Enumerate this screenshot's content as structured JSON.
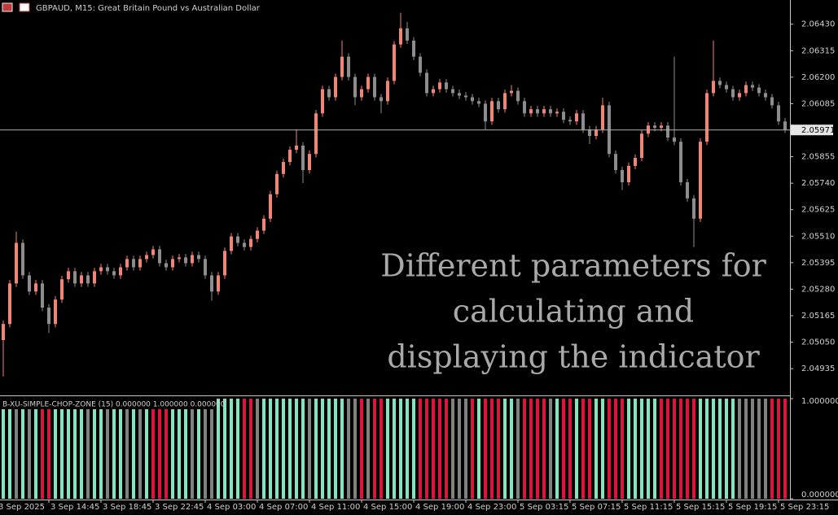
{
  "chart_data": [
    {
      "type": "candlestick",
      "title": "GBPAUD, M15:  Great Britain Pound vs Australian Dollar",
      "annotation": [
        "Different parameters for",
        "calculating and",
        "displaying the indicator"
      ],
      "up_color": "#ef8577",
      "down_color": "#8d8d8d",
      "categories": [
        "3 Sep 2025",
        null,
        null,
        null,
        null,
        null,
        null,
        null,
        "3 Sep 14:45",
        null,
        null,
        null,
        null,
        null,
        null,
        null,
        "3 Sep 18:45",
        null,
        null,
        null,
        null,
        null,
        null,
        null,
        "3 Sep 22:45",
        null,
        null,
        null,
        null,
        null,
        null,
        null,
        "4 Sep 03:00",
        null,
        null,
        null,
        null,
        null,
        null,
        null,
        "4 Sep 07:00",
        null,
        null,
        null,
        null,
        null,
        null,
        null,
        "4 Sep 11:00",
        null,
        null,
        null,
        null,
        null,
        null,
        null,
        "4 Sep 15:00",
        null,
        null,
        null,
        null,
        null,
        null,
        null,
        "4 Sep 19:00",
        null,
        null,
        null,
        null,
        null,
        null,
        null,
        "4 Sep 23:00",
        null,
        null,
        null,
        null,
        null,
        null,
        null,
        "5 Sep 03:15",
        null,
        null,
        null,
        null,
        null,
        null,
        null,
        "5 Sep 07:15",
        null,
        null,
        null,
        null,
        null,
        null,
        null,
        "5 Sep 11:15",
        null,
        null,
        null,
        null,
        null,
        null,
        null,
        "5 Sep 15:15",
        null,
        null,
        null,
        null,
        null,
        null,
        null,
        "5 Sep 19:15",
        null,
        null,
        null,
        null,
        null,
        null,
        null,
        "5 Sep 23:15"
      ],
      "open": [
        2.05059,
        2.05129,
        2.05305,
        2.05481,
        2.0534,
        2.0527,
        2.05305,
        2.052,
        2.05129,
        2.05235,
        2.05323,
        2.05358,
        2.05305,
        2.0534,
        2.05305,
        2.05358,
        2.05375,
        2.05358,
        2.0534,
        2.05375,
        2.05411,
        2.05375,
        2.05411,
        2.05428,
        2.05453,
        2.05393,
        2.05375,
        2.05411,
        2.05418,
        2.05393,
        2.05428,
        2.05411,
        2.0534,
        2.0527,
        2.0534,
        2.05446,
        2.05509,
        2.05481,
        2.05463,
        2.05498,
        2.05534,
        2.05586,
        2.05692,
        2.0578,
        2.05832,
        2.05885,
        2.05903,
        2.05797,
        2.05867,
        2.06043,
        2.06148,
        2.06113,
        2.06201,
        2.06289,
        2.06201,
        2.06113,
        2.06148,
        2.06201,
        2.06113,
        2.06096,
        2.06184,
        2.06342,
        2.06412,
        2.06359,
        2.06289,
        2.06219,
        2.06131,
        2.06148,
        2.06177,
        2.06148,
        2.06131,
        2.0612,
        2.06113,
        2.06096,
        2.06085,
        2.06008,
        2.06096,
        2.06061,
        2.06131,
        2.06141,
        2.06096,
        2.06043,
        2.06061,
        2.06043,
        2.06061,
        2.06043,
        2.0605,
        2.06015,
        2.06008,
        2.06043,
        2.05973,
        2.05945,
        2.05973,
        2.06078,
        2.05867,
        2.05797,
        2.05744,
        2.05815,
        2.0585,
        2.05955,
        2.0599,
        2.0598,
        2.0599,
        2.05938,
        2.0592,
        2.05744,
        2.05674,
        2.05586,
        2.0592,
        2.06131,
        2.06184,
        2.06166,
        2.06148,
        2.06113,
        2.06131,
        2.06166,
        2.06155,
        2.06131,
        2.06113,
        2.06078,
        2.06008
      ],
      "high": [
        2.05144,
        2.0532,
        2.0553,
        2.05496,
        2.05355,
        2.0532,
        2.0532,
        2.05215,
        2.0525,
        2.05338,
        2.05373,
        2.05373,
        2.05355,
        2.05355,
        2.05373,
        2.0539,
        2.0539,
        2.05373,
        2.0539,
        2.05426,
        2.05426,
        2.05426,
        2.05443,
        2.05468,
        2.05468,
        2.05408,
        2.05426,
        2.05433,
        2.05433,
        2.05443,
        2.05443,
        2.05426,
        2.05355,
        2.05355,
        2.05461,
        2.05524,
        2.05524,
        2.05496,
        2.05513,
        2.05549,
        2.05601,
        2.05707,
        2.05795,
        2.05847,
        2.059,
        2.05973,
        2.05918,
        2.05882,
        2.06058,
        2.06163,
        2.06163,
        2.06216,
        2.06359,
        2.06304,
        2.06216,
        2.06163,
        2.06216,
        2.06216,
        2.06128,
        2.06199,
        2.06357,
        2.0648,
        2.0644,
        2.06374,
        2.06304,
        2.06234,
        2.06163,
        2.06192,
        2.06192,
        2.06163,
        2.06146,
        2.06135,
        2.06128,
        2.06111,
        2.061,
        2.06111,
        2.06111,
        2.06146,
        2.06166,
        2.06156,
        2.06111,
        2.06076,
        2.06076,
        2.06076,
        2.06076,
        2.06065,
        2.06065,
        2.0603,
        2.06058,
        2.06058,
        2.05988,
        2.05988,
        2.06111,
        2.06093,
        2.05882,
        2.05812,
        2.0583,
        2.05865,
        2.0597,
        2.06005,
        2.06005,
        2.06005,
        2.06005,
        2.06289,
        2.05935,
        2.05759,
        2.05689,
        2.05935,
        2.06146,
        2.06359,
        2.06199,
        2.06181,
        2.06163,
        2.06146,
        2.06181,
        2.06181,
        2.0617,
        2.06146,
        2.06128,
        2.06093,
        2.06023
      ],
      "low": [
        2.04901,
        2.05114,
        2.0529,
        2.05325,
        2.05255,
        2.05255,
        2.05185,
        2.0509,
        2.05114,
        2.0522,
        2.05308,
        2.0529,
        2.0529,
        2.0529,
        2.0529,
        2.05343,
        2.05343,
        2.05325,
        2.05325,
        2.0536,
        2.0536,
        2.0536,
        2.05396,
        2.05413,
        2.05378,
        2.0536,
        2.0536,
        2.05396,
        2.05378,
        2.05378,
        2.05396,
        2.05325,
        2.0523,
        2.05255,
        2.05325,
        2.05431,
        2.05466,
        2.05448,
        2.05448,
        2.05483,
        2.05519,
        2.05571,
        2.05677,
        2.05765,
        2.05817,
        2.0587,
        2.0574,
        2.05782,
        2.05852,
        2.06028,
        2.06098,
        2.06098,
        2.06186,
        2.06186,
        2.06078,
        2.06098,
        2.06133,
        2.06098,
        2.06043,
        2.06081,
        2.06169,
        2.06327,
        2.06344,
        2.06274,
        2.06204,
        2.06116,
        2.06116,
        2.06133,
        2.06133,
        2.06116,
        2.06105,
        2.06098,
        2.06081,
        2.0607,
        2.05973,
        2.05993,
        2.06046,
        2.06046,
        2.06116,
        2.06081,
        2.06028,
        2.06028,
        2.06028,
        2.06028,
        2.06028,
        2.06028,
        2.06,
        2.05993,
        2.05993,
        2.05958,
        2.0591,
        2.0593,
        2.05958,
        2.05852,
        2.05782,
        2.0571,
        2.05729,
        2.058,
        2.05835,
        2.0594,
        2.05965,
        2.05965,
        2.05923,
        2.05905,
        2.05729,
        2.05659,
        2.05463,
        2.05571,
        2.05905,
        2.06116,
        2.06151,
        2.06133,
        2.06098,
        2.06098,
        2.06116,
        2.0614,
        2.06116,
        2.06098,
        2.06063,
        2.05993,
        2.05958
      ],
      "close": [
        2.05129,
        2.05305,
        2.05481,
        2.0534,
        2.0527,
        2.05305,
        2.052,
        2.05129,
        2.05235,
        2.05323,
        2.05358,
        2.05305,
        2.0534,
        2.05305,
        2.05358,
        2.05375,
        2.05358,
        2.0534,
        2.05375,
        2.05411,
        2.05375,
        2.05411,
        2.05428,
        2.05453,
        2.05393,
        2.05375,
        2.05411,
        2.05418,
        2.05393,
        2.05428,
        2.05411,
        2.0534,
        2.0527,
        2.0534,
        2.05446,
        2.05509,
        2.05481,
        2.05463,
        2.05498,
        2.05534,
        2.05586,
        2.05692,
        2.0578,
        2.05832,
        2.05885,
        2.05903,
        2.05797,
        2.05867,
        2.06043,
        2.06148,
        2.06113,
        2.06201,
        2.06289,
        2.06201,
        2.06113,
        2.06148,
        2.06201,
        2.06113,
        2.06096,
        2.06184,
        2.06342,
        2.06412,
        2.06359,
        2.06289,
        2.06219,
        2.06131,
        2.06148,
        2.06177,
        2.06148,
        2.06131,
        2.0612,
        2.06113,
        2.06096,
        2.06085,
        2.06008,
        2.06096,
        2.06061,
        2.06131,
        2.06141,
        2.06096,
        2.06043,
        2.06061,
        2.06043,
        2.06061,
        2.06043,
        2.0605,
        2.06015,
        2.06008,
        2.06043,
        2.05973,
        2.05945,
        2.05973,
        2.06078,
        2.05867,
        2.05797,
        2.05744,
        2.05815,
        2.0585,
        2.05955,
        2.0599,
        2.0598,
        2.0599,
        2.05938,
        2.0592,
        2.05744,
        2.05674,
        2.05586,
        2.0592,
        2.06131,
        2.06184,
        2.06166,
        2.06148,
        2.06113,
        2.06131,
        2.06166,
        2.06155,
        2.06131,
        2.06113,
        2.06078,
        2.06008,
        2.05973
      ],
      "ylim": [
        2.04819,
        2.06535
      ],
      "yticks": [
        {
          "value": 2.0643,
          "label": "2.06430"
        },
        2.06315,
        {
          "value": 2.062,
          "label": "2.06200"
        },
        2.06085,
        2.05855,
        {
          "value": 2.0574,
          "label": "2.05740"
        },
        2.05625,
        {
          "value": 2.0551,
          "label": "2.05510"
        },
        2.05395,
        {
          "value": 2.0528,
          "label": "2.05280"
        },
        2.05165,
        {
          "value": 2.0505,
          "label": "2.05050"
        },
        2.04935
      ],
      "current_price": 2.05971,
      "current_price_color": "#b4b4b4"
    },
    {
      "type": "bar",
      "title": "B-XU-SIMPLE-CHOP-ZONE (15) 0.000000 1.000000 0.000000",
      "values": [
        1,
        1,
        1,
        1,
        1,
        1,
        1,
        1,
        1,
        1,
        1,
        1,
        1,
        1,
        1,
        1,
        1,
        1,
        1,
        1,
        1,
        1,
        1,
        1,
        1,
        1,
        1,
        1,
        1,
        1,
        1,
        1,
        1,
        1,
        1,
        1,
        1,
        1,
        1,
        1,
        1,
        1,
        1,
        1,
        1,
        1,
        1,
        1,
        1,
        1,
        1,
        1,
        1,
        1,
        1,
        1,
        1,
        1,
        1,
        1,
        1,
        1,
        1,
        1,
        1,
        1,
        1,
        1,
        1,
        1,
        1,
        1,
        1,
        1,
        1,
        1,
        1,
        1,
        1,
        1,
        1,
        1,
        1,
        1,
        1,
        1,
        1,
        1,
        1,
        1,
        1,
        1,
        1,
        1,
        1,
        1,
        1,
        1,
        1,
        1,
        1,
        1,
        1,
        1,
        1,
        1,
        1,
        1,
        1,
        1,
        1,
        1,
        1,
        1,
        1,
        1,
        1,
        1,
        1,
        1,
        1
      ],
      "colors": [
        "#86e3bd",
        "#86e3bd",
        "#808080",
        "#86e3bd",
        "#808080",
        "#86e3bd",
        "#dc143c",
        "#dc143c",
        "#86e3bd",
        "#86e3bd",
        "#86e3bd",
        "#86e3bd",
        "#86e3bd",
        "#808080",
        "#86e3bd",
        "#86e3bd",
        "#808080",
        "#86e3bd",
        "#86e3bd",
        "#808080",
        "#86e3bd",
        "#808080",
        "#86e3bd",
        "#dc143c",
        "#dc143c",
        "#dc143c",
        "#86e3bd",
        "#86e3bd",
        "#86e3bd",
        "#808080",
        "#86e3bd",
        "#808080",
        "#808080",
        "#86e3bd",
        "#86e3bd",
        "#86e3bd",
        "#86e3bd",
        "#dc143c",
        "#dc143c",
        "#808080",
        "#86e3bd",
        "#86e3bd",
        "#86e3bd",
        "#86e3bd",
        "#86e3bd",
        "#86e3bd",
        "#86e3bd",
        "#808080",
        "#86e3bd",
        "#86e3bd",
        "#86e3bd",
        "#86e3bd",
        "#86e3bd",
        "#808080",
        "#808080",
        "#dc143c",
        "#808080",
        "#dc143c",
        "#dc143c",
        "#86e3bd",
        "#86e3bd",
        "#86e3bd",
        "#86e3bd",
        "#86e3bd",
        "#dc143c",
        "#dc143c",
        "#dc143c",
        "#dc143c",
        "#dc143c",
        "#808080",
        "#808080",
        "#808080",
        "#dc143c",
        "#86e3bd",
        "#dc143c",
        "#dc143c",
        "#dc143c",
        "#86e3bd",
        "#86e3bd",
        "#808080",
        "#dc143c",
        "#dc143c",
        "#dc143c",
        "#dc143c",
        "#808080",
        "#86e3bd",
        "#dc143c",
        "#dc143c",
        "#86e3bd",
        "#dc143c",
        "#dc143c",
        "#86e3bd",
        "#86e3bd",
        "#dc143c",
        "#dc143c",
        "#dc143c",
        "#86e3bd",
        "#86e3bd",
        "#86e3bd",
        "#86e3bd",
        "#86e3bd",
        "#dc143c",
        "#dc143c",
        "#dc143c",
        "#dc143c",
        "#dc143c",
        "#dc143c",
        "#86e3bd",
        "#86e3bd",
        "#86e3bd",
        "#86e3bd",
        "#86e3bd",
        "#86e3bd",
        "#808080",
        "#808080",
        "#808080",
        "#808080",
        "#808080",
        "#dc143c",
        "#dc143c",
        "#dc143c"
      ],
      "ylim": [
        0,
        1
      ],
      "yticks": [
        {
          "value": 1,
          "label": "1.000000"
        },
        {
          "value": 0,
          "label": "0.000000"
        }
      ]
    }
  ]
}
